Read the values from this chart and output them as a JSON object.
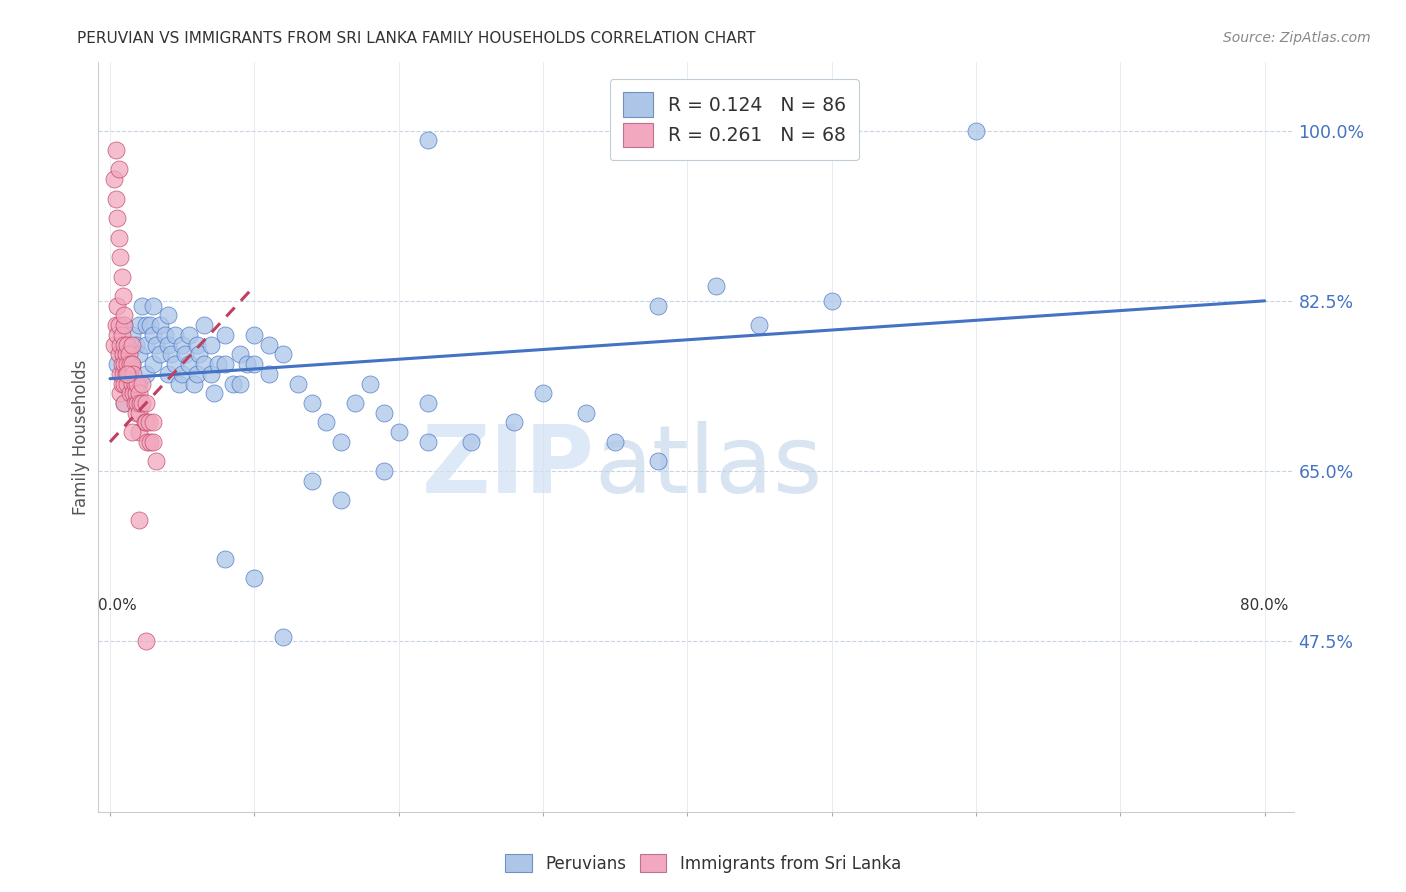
{
  "title": "PERUVIAN VS IMMIGRANTS FROM SRI LANKA FAMILY HOUSEHOLDS CORRELATION CHART",
  "source": "Source: ZipAtlas.com",
  "ylabel": "Family Households",
  "ytick_labels": [
    "100.0%",
    "82.5%",
    "65.0%",
    "47.5%"
  ],
  "ytick_values": [
    1.0,
    0.825,
    0.65,
    0.475
  ],
  "xlim": [
    0.0,
    0.8
  ],
  "ylim": [
    0.3,
    1.07
  ],
  "legend_label1": "R = 0.124   N = 86",
  "legend_label2": "R = 0.261   N = 68",
  "color_blue": "#adc6e8",
  "color_pink": "#f2a8be",
  "line_color_blue": "#4472c4",
  "line_color_pink": "#c04060",
  "watermark_text": "ZIPatlas",
  "blue_line_x0": 0.0,
  "blue_line_y0": 0.745,
  "blue_line_x1": 0.8,
  "blue_line_y1": 0.825,
  "pink_line_x0": 0.0,
  "pink_line_y0": 0.68,
  "pink_line_x1": 0.1,
  "pink_line_y1": 0.84,
  "peruvians_x": [
    0.005,
    0.008,
    0.01,
    0.01,
    0.01,
    0.012,
    0.015,
    0.015,
    0.015,
    0.018,
    0.02,
    0.02,
    0.02,
    0.022,
    0.025,
    0.025,
    0.025,
    0.028,
    0.03,
    0.03,
    0.03,
    0.032,
    0.035,
    0.035,
    0.038,
    0.04,
    0.04,
    0.04,
    0.042,
    0.045,
    0.045,
    0.048,
    0.05,
    0.05,
    0.052,
    0.055,
    0.055,
    0.058,
    0.06,
    0.06,
    0.062,
    0.065,
    0.065,
    0.07,
    0.07,
    0.072,
    0.075,
    0.08,
    0.08,
    0.085,
    0.09,
    0.09,
    0.095,
    0.1,
    0.1,
    0.11,
    0.11,
    0.12,
    0.13,
    0.14,
    0.15,
    0.16,
    0.17,
    0.18,
    0.19,
    0.2,
    0.22,
    0.25,
    0.28,
    0.3,
    0.33,
    0.35,
    0.38,
    0.14,
    0.16,
    0.19,
    0.22,
    0.6,
    0.38,
    0.42,
    0.45,
    0.5,
    0.08,
    0.1,
    0.12,
    0.22
  ],
  "peruvians_y": [
    0.76,
    0.78,
    0.8,
    0.75,
    0.72,
    0.77,
    0.79,
    0.76,
    0.74,
    0.78,
    0.8,
    0.77,
    0.74,
    0.82,
    0.8,
    0.78,
    0.75,
    0.8,
    0.82,
    0.79,
    0.76,
    0.78,
    0.8,
    0.77,
    0.79,
    0.81,
    0.78,
    0.75,
    0.77,
    0.79,
    0.76,
    0.74,
    0.78,
    0.75,
    0.77,
    0.79,
    0.76,
    0.74,
    0.78,
    0.75,
    0.77,
    0.8,
    0.76,
    0.78,
    0.75,
    0.73,
    0.76,
    0.79,
    0.76,
    0.74,
    0.77,
    0.74,
    0.76,
    0.79,
    0.76,
    0.78,
    0.75,
    0.77,
    0.74,
    0.72,
    0.7,
    0.68,
    0.72,
    0.74,
    0.71,
    0.69,
    0.72,
    0.68,
    0.7,
    0.73,
    0.71,
    0.68,
    0.66,
    0.64,
    0.62,
    0.65,
    0.68,
    1.0,
    0.82,
    0.84,
    0.8,
    0.825,
    0.56,
    0.54,
    0.48,
    0.99
  ],
  "srilanka_x": [
    0.003,
    0.004,
    0.005,
    0.005,
    0.006,
    0.006,
    0.007,
    0.007,
    0.007,
    0.008,
    0.008,
    0.008,
    0.009,
    0.009,
    0.01,
    0.01,
    0.01,
    0.01,
    0.01,
    0.011,
    0.011,
    0.012,
    0.012,
    0.012,
    0.013,
    0.013,
    0.014,
    0.014,
    0.015,
    0.015,
    0.015,
    0.016,
    0.016,
    0.017,
    0.017,
    0.018,
    0.018,
    0.019,
    0.019,
    0.02,
    0.02,
    0.02,
    0.021,
    0.022,
    0.022,
    0.024,
    0.025,
    0.025,
    0.026,
    0.027,
    0.028,
    0.03,
    0.03,
    0.032,
    0.003,
    0.004,
    0.005,
    0.006,
    0.007,
    0.008,
    0.009,
    0.01,
    0.012,
    0.015,
    0.02,
    0.025,
    0.004,
    0.006
  ],
  "srilanka_y": [
    0.78,
    0.8,
    0.82,
    0.79,
    0.8,
    0.77,
    0.78,
    0.75,
    0.73,
    0.79,
    0.76,
    0.74,
    0.77,
    0.75,
    0.8,
    0.78,
    0.76,
    0.74,
    0.72,
    0.77,
    0.75,
    0.78,
    0.76,
    0.74,
    0.77,
    0.75,
    0.73,
    0.76,
    0.78,
    0.76,
    0.74,
    0.75,
    0.73,
    0.74,
    0.72,
    0.73,
    0.71,
    0.74,
    0.72,
    0.73,
    0.71,
    0.69,
    0.72,
    0.74,
    0.72,
    0.7,
    0.72,
    0.7,
    0.68,
    0.7,
    0.68,
    0.7,
    0.68,
    0.66,
    0.95,
    0.93,
    0.91,
    0.89,
    0.87,
    0.85,
    0.83,
    0.81,
    0.75,
    0.69,
    0.6,
    0.475,
    0.98,
    0.96
  ]
}
